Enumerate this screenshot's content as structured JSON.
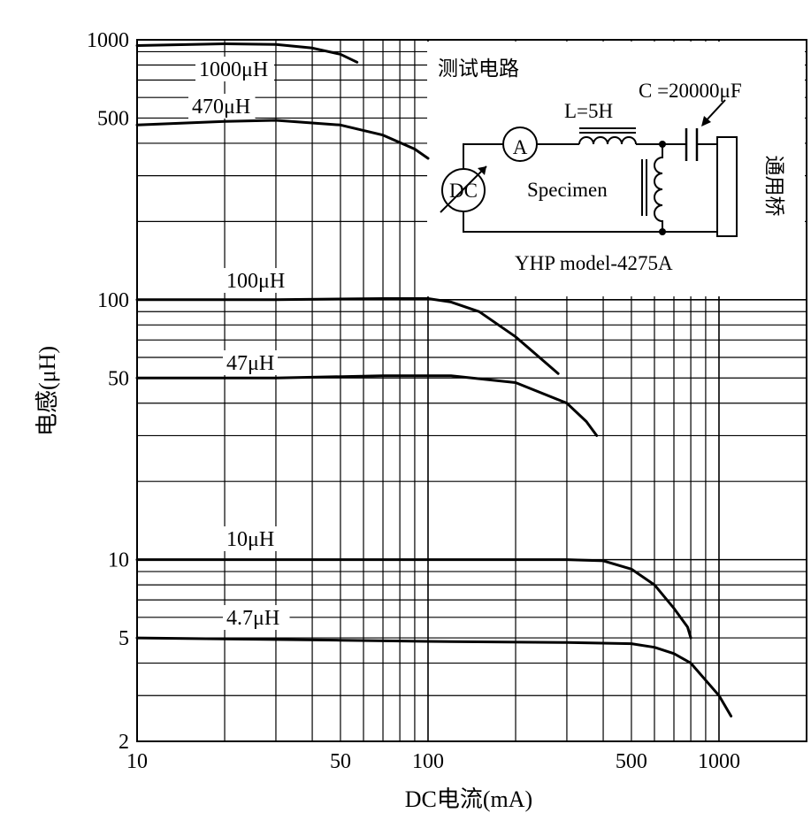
{
  "chart_data": {
    "type": "line",
    "xscale": "log",
    "yscale": "log",
    "xlim": [
      10,
      2000
    ],
    "ylim": [
      2,
      1000
    ],
    "grid": true,
    "xlabel": "DC电流(mA)",
    "ylabel": "电感(μH)",
    "x_tick_labels": [
      "10",
      "50",
      "100",
      "500",
      "1000"
    ],
    "x_tick_values": [
      10,
      50,
      100,
      500,
      1000
    ],
    "y_tick_labels": [
      "1000",
      "500",
      "100",
      "50",
      "10",
      "5",
      "2"
    ],
    "y_tick_values": [
      1000,
      500,
      100,
      50,
      10,
      5,
      2
    ],
    "series": [
      {
        "name": "1000μH",
        "x": [
          10,
          20,
          30,
          40,
          50,
          57
        ],
        "y": [
          950,
          965,
          960,
          930,
          880,
          820
        ]
      },
      {
        "name": "470μH",
        "x": [
          10,
          20,
          30,
          50,
          70,
          90,
          100
        ],
        "y": [
          470,
          485,
          490,
          470,
          430,
          380,
          350
        ]
      },
      {
        "name": "100μH",
        "x": [
          10,
          30,
          70,
          100,
          120,
          150,
          200,
          250,
          280
        ],
        "y": [
          100,
          100,
          101,
          101,
          98,
          90,
          72,
          58,
          52
        ]
      },
      {
        "name": "47μH",
        "x": [
          10,
          30,
          70,
          120,
          200,
          300,
          350,
          380
        ],
        "y": [
          50,
          50,
          51,
          51,
          48,
          40,
          34,
          30
        ]
      },
      {
        "name": "10μH",
        "x": [
          10,
          50,
          100,
          300,
          400,
          500,
          600,
          700,
          780,
          800
        ],
        "y": [
          10,
          10,
          10,
          10,
          9.9,
          9.2,
          8.0,
          6.5,
          5.5,
          5.0
        ]
      },
      {
        "name": "4.7μH",
        "x": [
          10,
          50,
          100,
          300,
          500,
          600,
          700,
          800,
          1000,
          1100
        ],
        "y": [
          5.0,
          4.9,
          4.85,
          4.8,
          4.75,
          4.6,
          4.35,
          4.0,
          3.0,
          2.5
        ]
      }
    ],
    "inset": {
      "title": "测试电路",
      "capacitor_label": "C =20000μF",
      "inductor_label": "L=5H",
      "ammeter_label": "A",
      "source_label": "DC",
      "specimen_label": "Specimen",
      "bridge_label": "通用桥",
      "instrument_label": "YHP model-4275A"
    }
  }
}
